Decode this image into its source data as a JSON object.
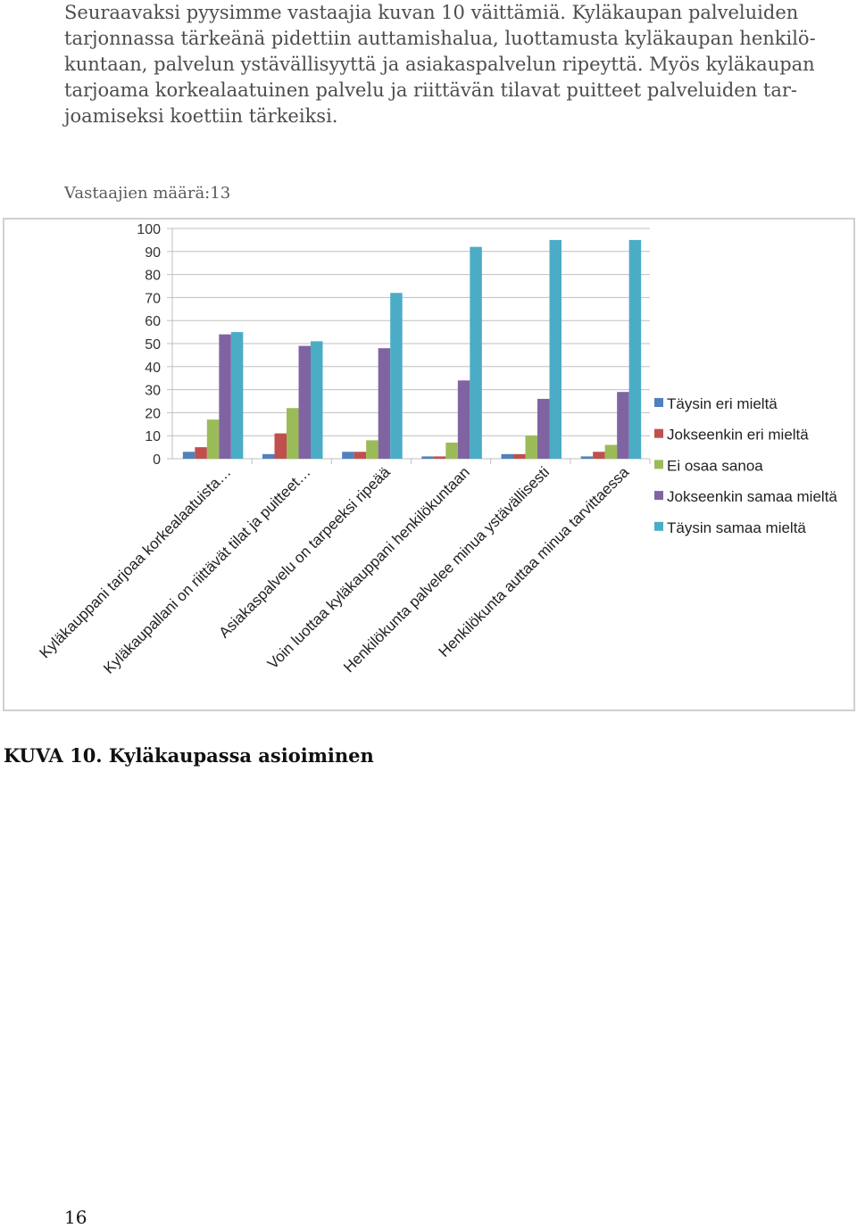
{
  "intro": {
    "lines": [
      "Seuraavaksi pyysimme vastaajia kuvan 10 väittämiä. Kyläkaupan palveluiden",
      "tarjonnassa tärkeänä pidettiin auttamishalua, luottamusta kyläkaupan henkilö-",
      "kuntaan, palvelun ystävällisyyttä ja asiakaspalvelun ripeyttä. Myös kyläkaupan",
      "tarjoama korkealaatuinen palvelu ja riittävän tilavat puitteet palveluiden tar-",
      "joamiseksi koettiin tärkeiksi."
    ]
  },
  "respondents": "Vastaajien määrä:13",
  "chart_data": {
    "type": "bar",
    "title": "",
    "xlabel": "",
    "ylabel": "",
    "ylim": [
      0,
      100
    ],
    "yticks": [
      "0",
      "10",
      "20",
      "30",
      "40",
      "50",
      "60",
      "70",
      "80",
      "90",
      "100"
    ],
    "grid": true,
    "legend_position": "right",
    "categories": [
      "Kyläkauppani tarjoaa korkealaatuista…",
      "Kyläkaupallani on riittävät tilat ja puitteet…",
      "Asiakaspalvelu on tarpeeksi ripeää",
      "Voin luottaa kyläkauppani henkilökuntaan",
      "Henkilökunta palvelee minua ystävällisesti",
      "Henkilökunta auttaa minua tarvittaessa"
    ],
    "series": [
      {
        "name": "Täysin eri mieltä",
        "color": "#4f81bd",
        "values": [
          3,
          2,
          3,
          1,
          2,
          1
        ]
      },
      {
        "name": "Jokseenkin eri mieltä",
        "color": "#c0504d",
        "values": [
          5,
          11,
          3,
          1,
          2,
          3
        ]
      },
      {
        "name": "Ei osaa sanoa",
        "color": "#9bbb59",
        "values": [
          17,
          22,
          8,
          7,
          10,
          6
        ]
      },
      {
        "name": "Jokseenkin samaa mieltä",
        "color": "#8064a2",
        "values": [
          54,
          49,
          48,
          34,
          26,
          29
        ]
      },
      {
        "name": "Täysin samaa mieltä",
        "color": "#4bacc6",
        "values": [
          55,
          51,
          72,
          92,
          95,
          95
        ]
      }
    ]
  },
  "caption": "KUVA 10. Kyläkaupassa asioiminen",
  "page_number": "16"
}
